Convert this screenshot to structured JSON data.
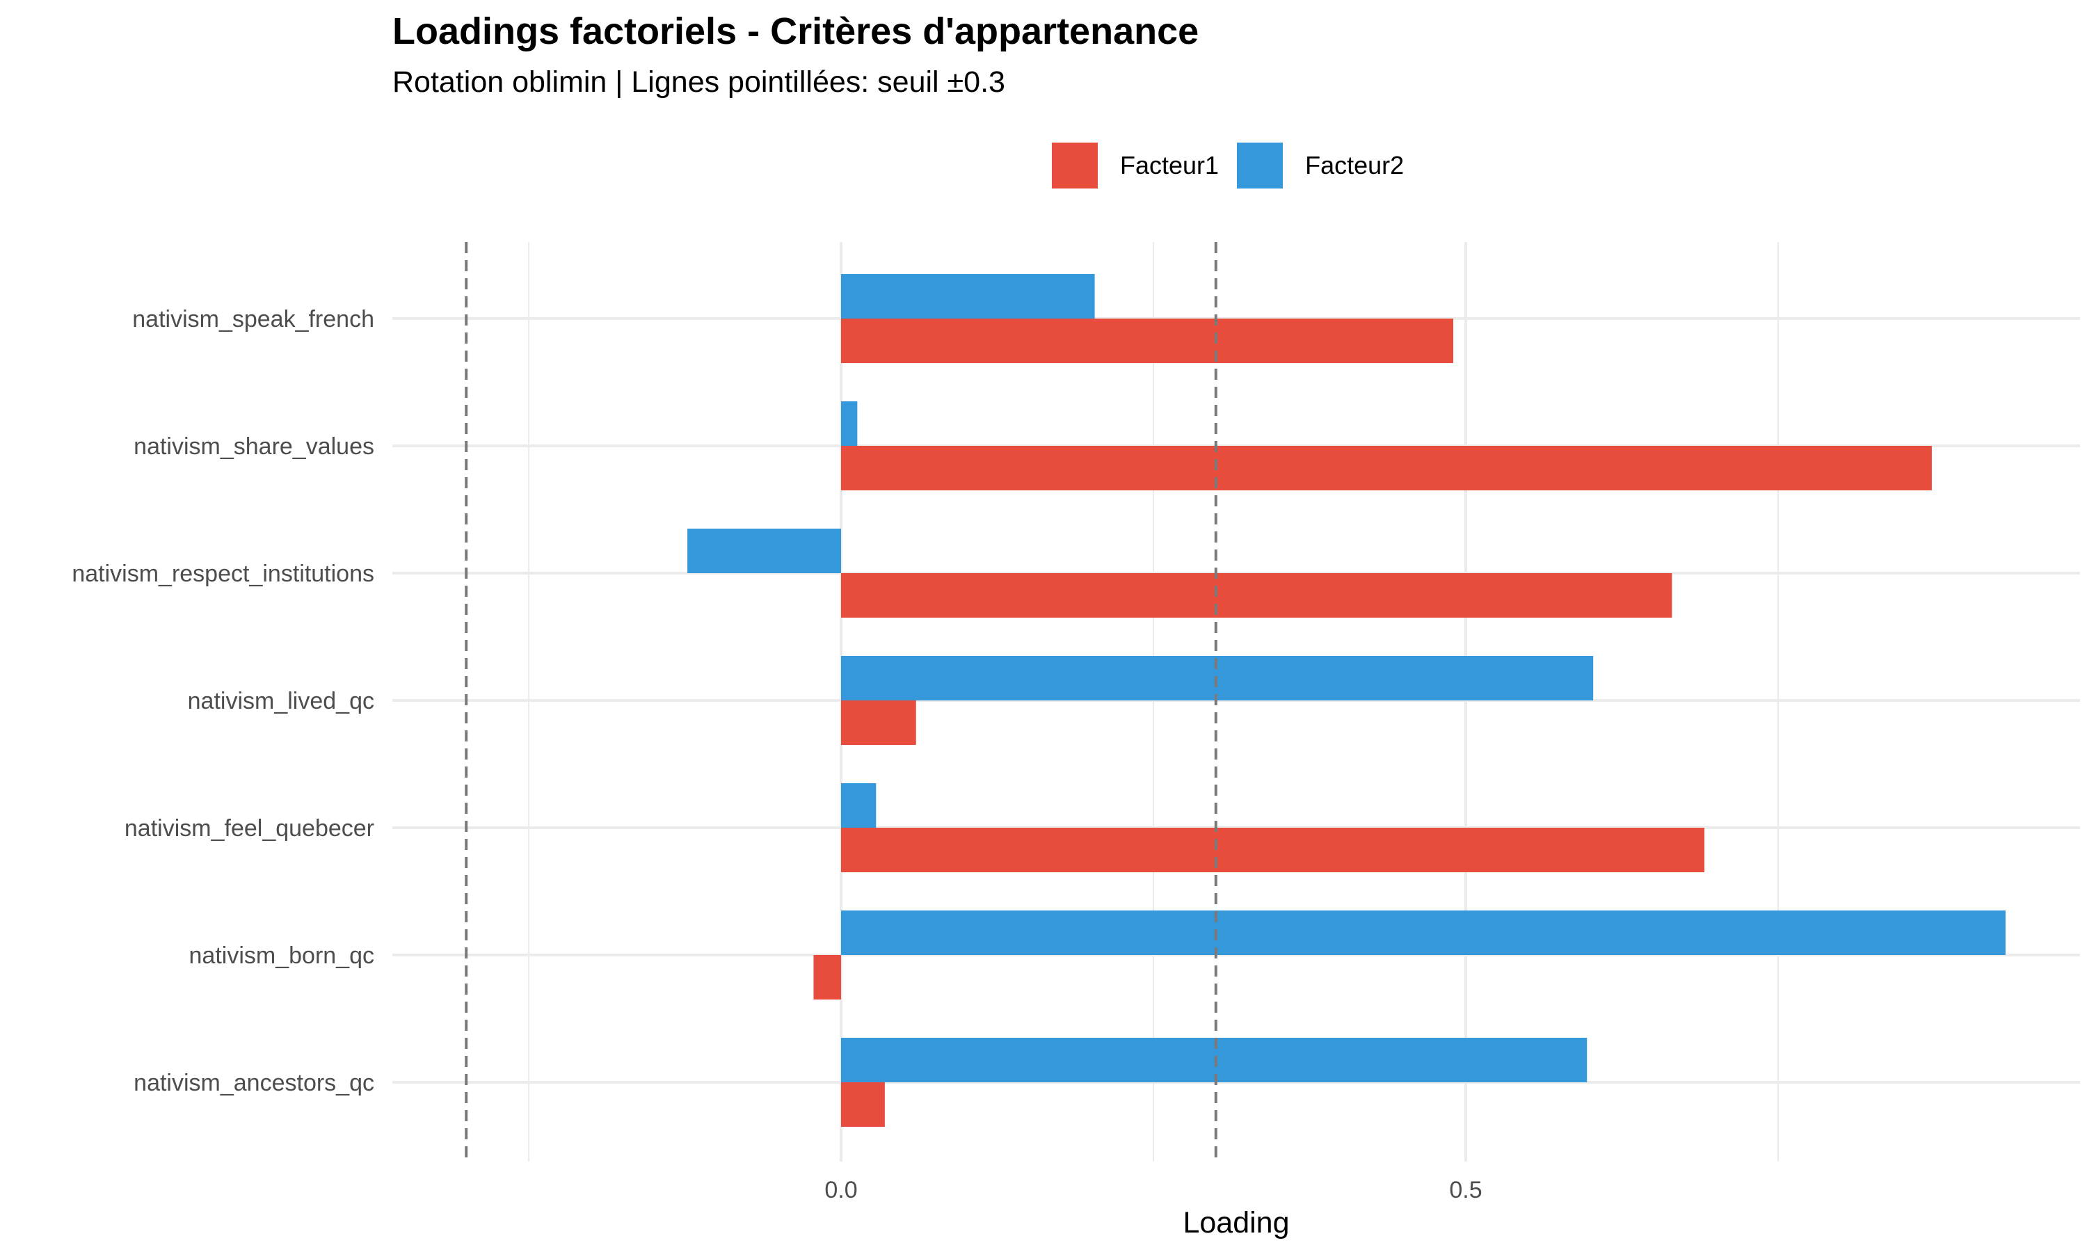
{
  "chart_data": {
    "type": "bar",
    "orientation": "horizontal",
    "title": "Loadings factoriels - Critères d'appartenance",
    "subtitle": "Rotation oblimin | Lignes pointillées: seuil ±0.3",
    "xlabel": "Loading",
    "ylabel": "",
    "categories": [
      "nativism_speak_french",
      "nativism_share_values",
      "nativism_respect_institutions",
      "nativism_lived_qc",
      "nativism_feel_quebecer",
      "nativism_born_qc",
      "nativism_ancestors_qc"
    ],
    "series": [
      {
        "name": "Facteur1",
        "color": "#E74C3C",
        "values": [
          0.49,
          0.873,
          0.665,
          0.06,
          0.691,
          -0.022,
          0.035
        ]
      },
      {
        "name": "Facteur2",
        "color": "#3498DB",
        "values": [
          0.203,
          0.013,
          -0.123,
          0.602,
          0.028,
          0.932,
          0.597
        ]
      }
    ],
    "xlim": [
      -0.35,
      0.99
    ],
    "xticks": [
      0.0,
      0.5
    ],
    "xtick_labels": [
      "0.0",
      "0.5"
    ],
    "reference_lines": [
      -0.3,
      0.3
    ],
    "grid": true,
    "legend_position": "top"
  }
}
